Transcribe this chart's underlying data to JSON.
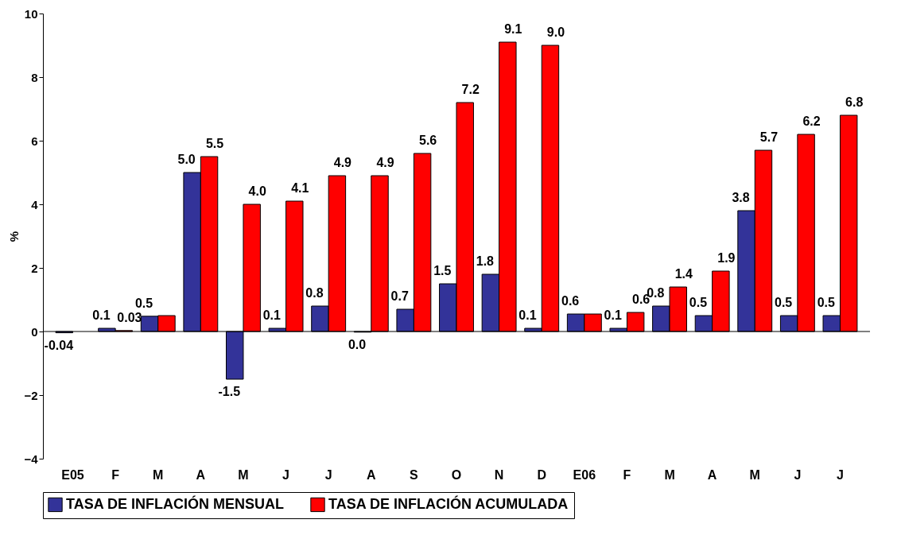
{
  "chart_data": {
    "type": "bar",
    "ylabel": "%",
    "categories": [
      "E05",
      "F",
      "M",
      "A",
      "M",
      "J",
      "J",
      "A",
      "S",
      "O",
      "N",
      "D",
      "E06",
      "F",
      "M",
      "A",
      "M",
      "J",
      "J"
    ],
    "series": [
      {
        "name": "TASA DE INFLACIÓN MENSUAL",
        "color": "#333399",
        "values": [
          -0.04,
          0.1,
          0.48,
          5.0,
          -1.5,
          0.1,
          0.8,
          -0.02,
          0.7,
          1.5,
          1.8,
          0.1,
          0.55,
          0.1,
          0.8,
          0.5,
          3.8,
          0.5,
          0.5
        ],
        "value_labels": [
          "-0.04",
          "0.1",
          "0.5",
          "5.0",
          "-1.5",
          "0.1",
          "0.8",
          "0.0",
          "0.7",
          "1.5",
          "1.8",
          "0.1",
          "0.6",
          "0.1",
          "0.8",
          "0.5",
          "3.8",
          "0.5",
          "0.5"
        ]
      },
      {
        "name": "TASA DE INFLACIÓN ACUMULADA",
        "color": "#ff0000",
        "values": [
          null,
          0.03,
          0.5,
          5.5,
          4.0,
          4.1,
          4.9,
          4.9,
          5.6,
          7.2,
          9.1,
          9.0,
          0.55,
          0.6,
          1.4,
          1.9,
          5.7,
          6.2,
          6.8
        ],
        "value_labels": [
          null,
          "0.03",
          null,
          "5.5",
          "4.0",
          "4.1",
          "4.9",
          "4.9",
          "5.6",
          "7.2",
          "9.1",
          "9.0",
          null,
          "0.6",
          "1.4",
          "1.9",
          "5.7",
          "6.2",
          "6.8"
        ]
      }
    ],
    "ref_lines": [
      {
        "axis": "y",
        "value": 0,
        "color": "#000000"
      }
    ],
    "ylim": [
      -4,
      10
    ],
    "yticks": [
      -4,
      -2,
      0,
      2,
      4,
      6,
      8,
      10
    ],
    "grid": false,
    "legend": "bottom"
  }
}
